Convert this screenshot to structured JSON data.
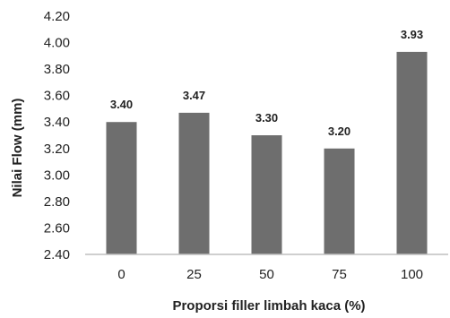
{
  "chart_data": {
    "type": "bar",
    "categories": [
      "0",
      "25",
      "50",
      "75",
      "100"
    ],
    "values": [
      3.4,
      3.47,
      3.3,
      3.2,
      3.93
    ],
    "data_labels": [
      "3.40",
      "3.47",
      "3.30",
      "3.20",
      "3.93"
    ],
    "y_ticks": [
      "2.40",
      "2.60",
      "2.80",
      "3.00",
      "3.20",
      "3.40",
      "3.60",
      "3.80",
      "4.00",
      "4.20"
    ],
    "ylim": [
      2.4,
      4.2
    ],
    "xlabel": "Proporsi filler limbah kaca (%)",
    "ylabel": "Nilai Flow (mm)",
    "grid": false,
    "bar_color": "#6e6e6e",
    "axis_color": "#bfbfbf"
  }
}
